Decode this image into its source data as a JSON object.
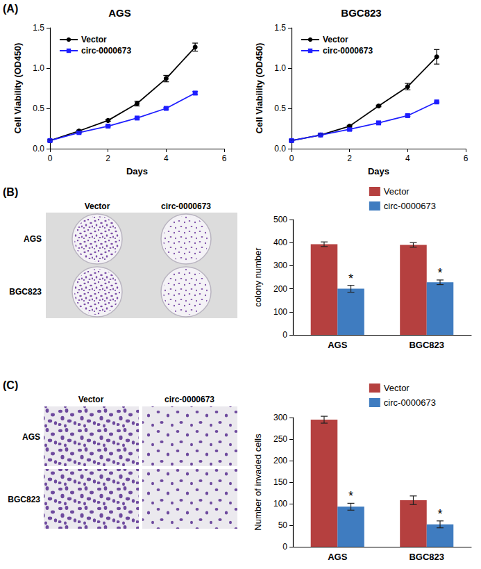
{
  "figure_panels": [
    {
      "label": "(A)"
    },
    {
      "label": "(B)",
      "image": {
        "columns": [
          "Vector",
          "circ-0000673"
        ],
        "rows": [
          "AGS",
          "BGC823"
        ]
      }
    },
    {
      "label": "(C)",
      "image": {
        "columns": [
          "Vector",
          "circ-0000673"
        ],
        "rows": [
          "AGS",
          "BGC823"
        ]
      }
    }
  ],
  "chart_data": [
    {
      "type": "line",
      "title": "AGS",
      "xlabel": "Days",
      "ylabel": "Cell Viability (OD450)",
      "x": [
        0,
        1,
        2,
        3,
        4,
        5
      ],
      "series": [
        {
          "name": "Vector",
          "color": "#000000",
          "marker": "circle",
          "line_style": "solid",
          "values": [
            0.1,
            0.22,
            0.35,
            0.56,
            0.87,
            1.26
          ],
          "errors": [
            0.01,
            0.01,
            0.01,
            0.03,
            0.04,
            0.05
          ]
        },
        {
          "name": "circ-0000673",
          "color": "#1f1fff",
          "marker": "square",
          "line_style": "solid",
          "values": [
            0.1,
            0.2,
            0.28,
            0.38,
            0.5,
            0.69
          ],
          "errors": [
            0.01,
            0.01,
            0.01,
            0.01,
            0.01,
            0.02
          ]
        }
      ],
      "xlim": [
        0,
        6
      ],
      "xticks": [
        0,
        2,
        4,
        6
      ],
      "ylim": [
        0,
        1.5
      ],
      "yticks": [
        {
          "value": 0,
          "label": "0.0"
        },
        0.5,
        {
          "value": 1,
          "label": "1.0"
        },
        1.5
      ],
      "legend": "upper left",
      "grid": false
    },
    {
      "type": "line",
      "title": "BGC823",
      "xlabel": "Days",
      "ylabel": "Cell Viability (OD450)",
      "x": [
        0,
        1,
        2,
        3,
        4,
        5
      ],
      "series": [
        {
          "name": "Vector",
          "color": "#000000",
          "marker": "circle",
          "line_style": "solid",
          "values": [
            0.1,
            0.17,
            0.28,
            0.53,
            0.77,
            1.14
          ],
          "errors": [
            0.01,
            0.01,
            0.01,
            0.01,
            0.04,
            0.09
          ]
        },
        {
          "name": "circ-0000673",
          "color": "#1f1fff",
          "marker": "square",
          "line_style": "solid",
          "values": [
            0.1,
            0.17,
            0.24,
            0.32,
            0.41,
            0.58
          ],
          "errors": [
            0.01,
            0.01,
            0.01,
            0.01,
            0.01,
            0.01
          ]
        }
      ],
      "xlim": [
        0,
        6
      ],
      "xticks": [
        0,
        2,
        4,
        6
      ],
      "ylim": [
        0,
        1.5
      ],
      "yticks": [
        {
          "value": 0,
          "label": "0.0"
        },
        0.5,
        {
          "value": 1,
          "label": "1.0"
        },
        1.5
      ],
      "legend": "upper left",
      "grid": false
    },
    {
      "type": "bar",
      "ylabel": "colony number",
      "categories": [
        "AGS",
        "BGC823"
      ],
      "series": [
        {
          "name": "Vector",
          "color": "#b5403f",
          "values": [
            393,
            390
          ],
          "errors": [
            10,
            10
          ]
        },
        {
          "name": "circ-0000673",
          "color": "#3f7cc0",
          "values": [
            200,
            228
          ],
          "errors": [
            15,
            10
          ],
          "annotations": [
            "*",
            "*"
          ]
        }
      ],
      "ylim": [
        0,
        500
      ],
      "yticks": [
        0,
        100,
        200,
        300,
        400,
        500
      ],
      "legend": "upper right",
      "grid": false
    },
    {
      "type": "bar",
      "ylabel": "Number of invaded cells",
      "categories": [
        "AGS",
        "BGC823"
      ],
      "series": [
        {
          "name": "Vector",
          "color": "#b5403f",
          "values": [
            295,
            108
          ],
          "errors": [
            8,
            10
          ]
        },
        {
          "name": "circ-0000673",
          "color": "#3f7cc0",
          "values": [
            93,
            52
          ],
          "errors": [
            8,
            8
          ],
          "annotations": [
            "*",
            "*"
          ]
        }
      ],
      "ylim": [
        0,
        300
      ],
      "yticks": [
        0,
        50,
        100,
        150,
        200,
        250,
        300
      ],
      "legend": "upper right",
      "grid": false
    }
  ]
}
